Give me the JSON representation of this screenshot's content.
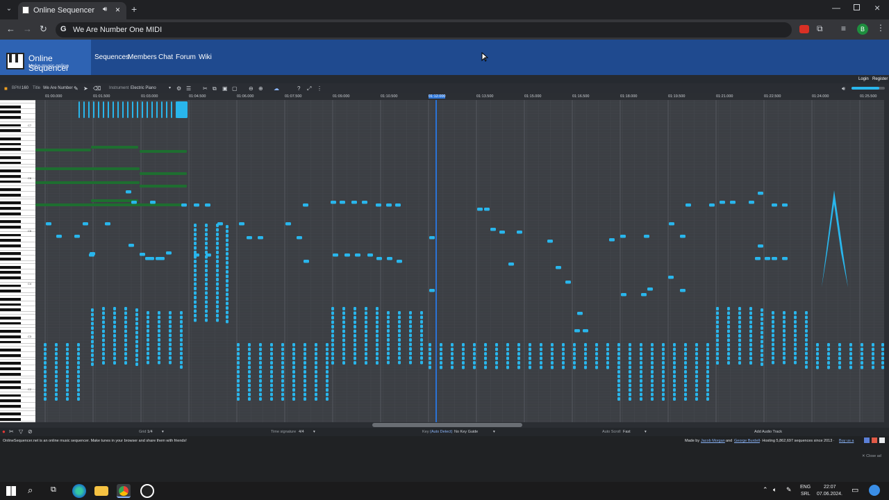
{
  "browser": {
    "tab_title": "Online Sequencer",
    "address": "We Are Number One MIDI",
    "profile_initial": "B"
  },
  "site": {
    "logo_title": "Online Sequencer",
    "logo_tagline": "Make music online",
    "nav": [
      "Sequences",
      "Members",
      "Chat",
      "Forum",
      "Wiki"
    ],
    "login": "Login",
    "register": "Register"
  },
  "toolbar": {
    "bpm_label": "BPM",
    "bpm_value": "160",
    "title_label": "Title",
    "title_value": "We Are Number",
    "instrument_label": "Instrument",
    "instrument_value": "Electric Piano"
  },
  "timeline": {
    "marks": [
      "01:00.000",
      "01:01.500",
      "01:03.000",
      "01:04.500",
      "01:06.000",
      "01:07.500",
      "01:09.000",
      "01:10.500",
      "01:12.000",
      "01:13.500",
      "01:15.000",
      "01:16.500",
      "01:18.000",
      "01:19.500",
      "01:21.000",
      "01:22.500",
      "01:24.000",
      "01:25.500"
    ],
    "playhead_index": 8
  },
  "piano": {
    "labels": [
      "C7",
      "C6",
      "C5",
      "C4",
      "C3",
      "C2"
    ]
  },
  "bottombar": {
    "grid_label": "Grid",
    "grid_value": "1/4",
    "time_sig_label": "Time signature",
    "time_sig_value": "4/4",
    "key_label": "Key",
    "key_auto": "(Auto Detect)",
    "key_value": "No Key Guide",
    "autoscroll_label": "Auto Scroll",
    "autoscroll_value": "Fast",
    "add_audio": "Add Audio Track"
  },
  "footer": {
    "left_text": "OnlineSequencer.net is an online music sequencer. Make tunes in your browser and share them with friends!",
    "right_made_by": "Made by",
    "author1": "Jacob Morgan",
    "and": "and",
    "author2": "George Burdell",
    "hosting": "· Hosting 5,862,697 sequences since 2013 ·",
    "buy": "Buy us a",
    "close_ad": "✕ Close ad"
  },
  "taskbar": {
    "lang": "ENG",
    "region": "SRL",
    "time": "22:07",
    "date": "07.06.2024."
  },
  "colors": {
    "note_blue": "#29b6ec",
    "note_green": "#1e6e30",
    "grid_bg": "#3c3f44",
    "site_blue": "#1f4a8f"
  }
}
